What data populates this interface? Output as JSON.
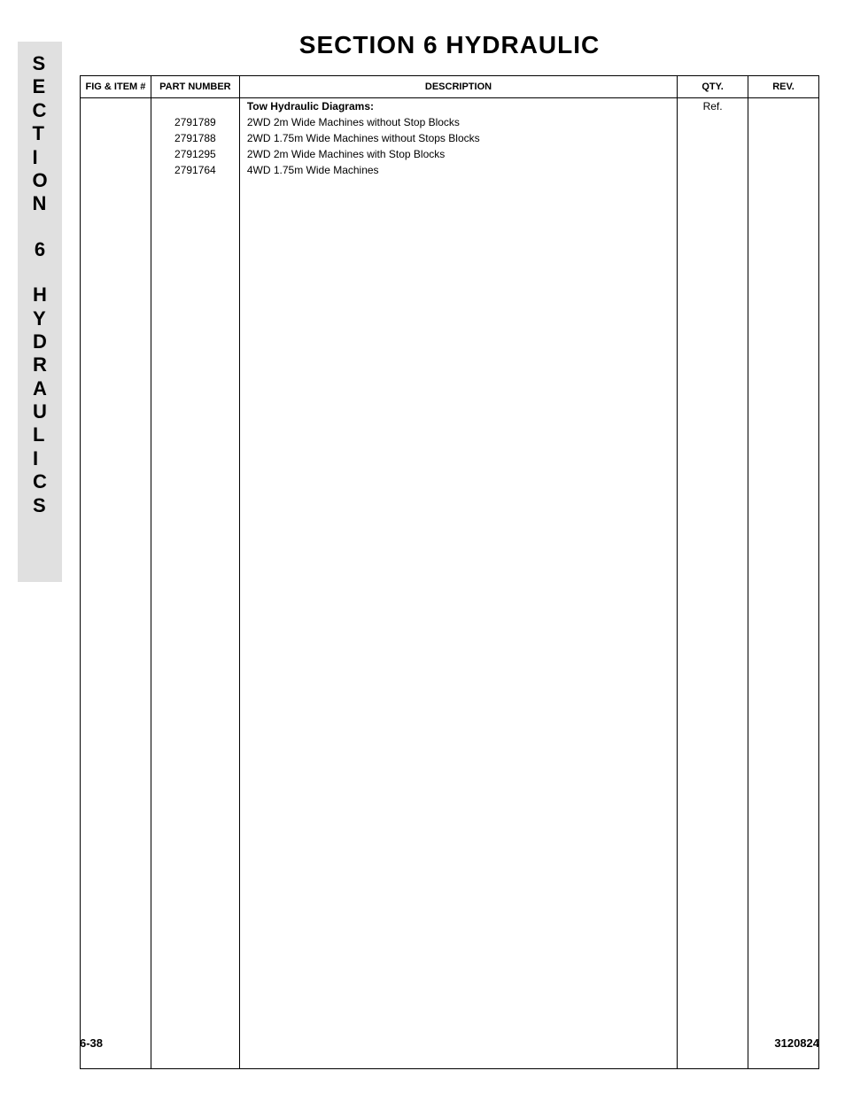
{
  "side_tab": {
    "line1_chars": [
      "S",
      "E",
      "C",
      "T",
      "I",
      "O",
      "N"
    ],
    "number": "6",
    "line2_parts": [
      "H",
      "Y",
      "D",
      "R",
      "A",
      "U",
      "L",
      "I",
      "C",
      "S"
    ]
  },
  "section_title": "SECTION 6    HYDRAULIC",
  "table": {
    "headers": {
      "fig_item": "FIG & ITEM #",
      "part_number": "PART NUMBER",
      "description": "DESCRIPTION",
      "qty": "QTY.",
      "rev": "REV."
    },
    "heading_row": {
      "desc": "Tow Hydraulic Diagrams:",
      "qty": "Ref."
    },
    "rows": [
      {
        "part": "2791789",
        "desc": "2WD 2m Wide Machines without Stop Blocks"
      },
      {
        "part": "2791788",
        "desc": "2WD 1.75m Wide Machines without Stops Blocks"
      },
      {
        "part": "2791295",
        "desc": "2WD 2m Wide Machines with Stop Blocks"
      },
      {
        "part": "2791764",
        "desc": "4WD 1.75m Wide Machines"
      }
    ]
  },
  "footer": {
    "page": "6-38",
    "doc": "3120824"
  },
  "colors": {
    "tab_bg": "#e0e0e0",
    "text": "#000000",
    "border": "#000000",
    "page_bg": "#ffffff"
  }
}
